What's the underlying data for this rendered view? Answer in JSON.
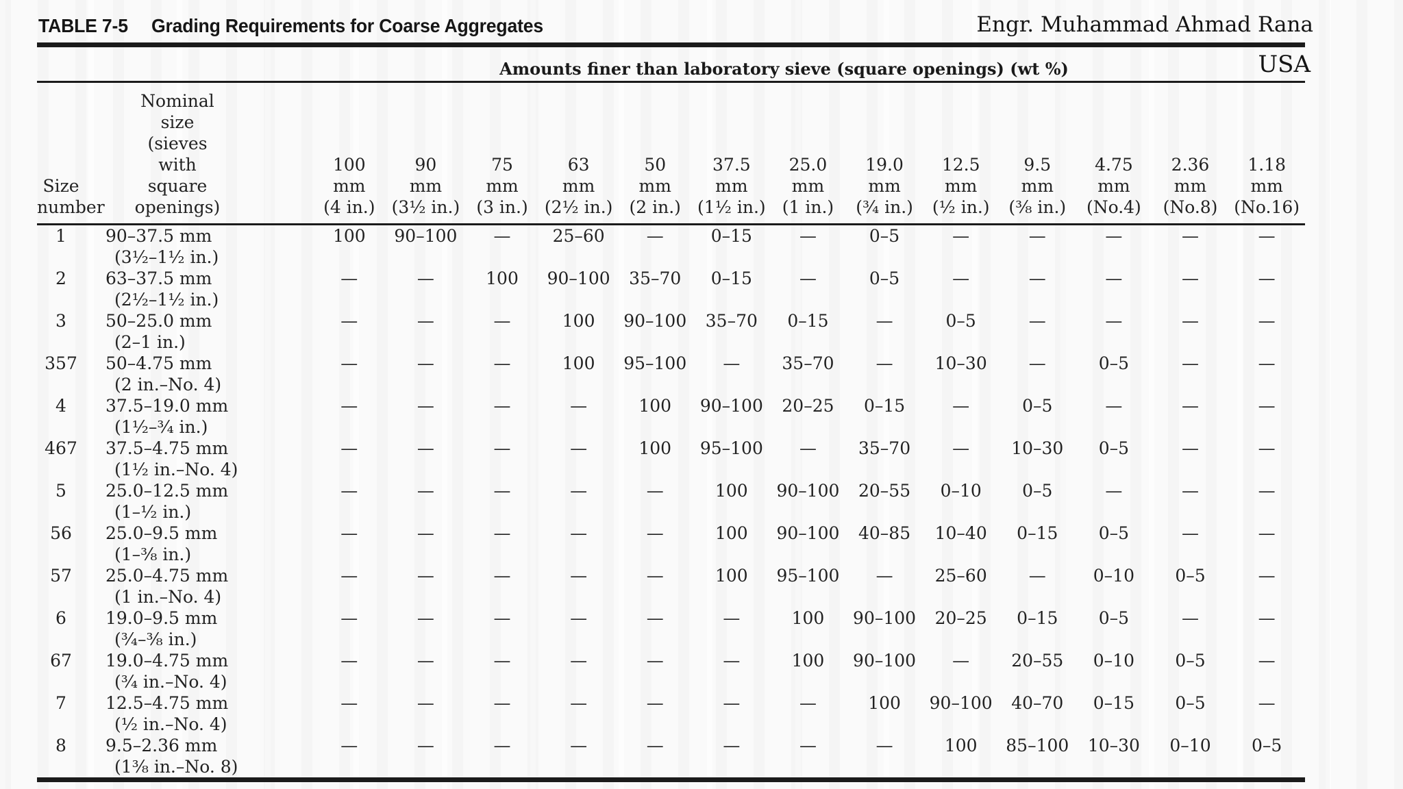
{
  "page": {
    "table_label": "TABLE 7-5",
    "table_title": "Grading Requirements for Coarse Aggregates",
    "credit_name": "Engr. Muhammad Ahmad Rana",
    "credit_country": "USA"
  },
  "table": {
    "span_header": "Amounts finer than laboratory sieve (square openings) (wt %)",
    "size_number_header_lines": [
      "Size",
      "number"
    ],
    "nominal_header_lines": [
      "Nominal",
      "size",
      "(sieves",
      "with",
      "square",
      "openings)"
    ],
    "empty_marker": "—",
    "sieve_columns": [
      {
        "size": "100",
        "unit": "mm",
        "imperial": "(4 in.)"
      },
      {
        "size": "90",
        "unit": "mm",
        "imperial": "(3¹⁄₂ in.)"
      },
      {
        "size": "75",
        "unit": "mm",
        "imperial": "(3 in.)"
      },
      {
        "size": "63",
        "unit": "mm",
        "imperial": "(2¹⁄₂ in.)"
      },
      {
        "size": "50",
        "unit": "mm",
        "imperial": "(2 in.)"
      },
      {
        "size": "37.5",
        "unit": "mm",
        "imperial": "(1¹⁄₂ in.)"
      },
      {
        "size": "25.0",
        "unit": "mm",
        "imperial": "(1 in.)"
      },
      {
        "size": "19.0",
        "unit": "mm",
        "imperial": "(³⁄₄ in.)"
      },
      {
        "size": "12.5",
        "unit": "mm",
        "imperial": "(¹⁄₂ in.)"
      },
      {
        "size": "9.5",
        "unit": "mm",
        "imperial": "(³⁄₈ in.)"
      },
      {
        "size": "4.75",
        "unit": "mm",
        "imperial": "(No.4)"
      },
      {
        "size": "2.36",
        "unit": "mm",
        "imperial": "(No.8)"
      },
      {
        "size": "1.18",
        "unit": "mm",
        "imperial": "(No.16)"
      }
    ],
    "rows": [
      {
        "size_number": "1",
        "nominal_mm": "90–37.5 mm",
        "nominal_in": "(3¹⁄₂–1¹⁄₂ in.)",
        "values": [
          "100",
          "90–100",
          "—",
          "25–60",
          "—",
          "0–15",
          "—",
          "0–5",
          "—",
          "—",
          "—",
          "—",
          "—"
        ]
      },
      {
        "size_number": "2",
        "nominal_mm": "63–37.5 mm",
        "nominal_in": "(2¹⁄₂–1¹⁄₂ in.)",
        "values": [
          "—",
          "—",
          "100",
          "90–100",
          "35–70",
          "0–15",
          "—",
          "0–5",
          "—",
          "—",
          "—",
          "—",
          "—"
        ]
      },
      {
        "size_number": "3",
        "nominal_mm": "50–25.0 mm",
        "nominal_in": "(2–1 in.)",
        "values": [
          "—",
          "—",
          "—",
          "100",
          "90–100",
          "35–70",
          "0–15",
          "—",
          "0–5",
          "—",
          "—",
          "—",
          "—"
        ]
      },
      {
        "size_number": "357",
        "nominal_mm": "50–4.75 mm",
        "nominal_in": "(2 in.–No. 4)",
        "values": [
          "—",
          "—",
          "—",
          "100",
          "95–100",
          "—",
          "35–70",
          "—",
          "10–30",
          "—",
          "0–5",
          "—",
          "—"
        ]
      },
      {
        "size_number": "4",
        "nominal_mm": "37.5–19.0 mm",
        "nominal_in": "(1¹⁄₂–³⁄₄ in.)",
        "values": [
          "—",
          "—",
          "—",
          "—",
          "100",
          "90–100",
          "20–25",
          "0–15",
          "—",
          "0–5",
          "—",
          "—",
          "—"
        ]
      },
      {
        "size_number": "467",
        "nominal_mm": "37.5–4.75 mm",
        "nominal_in": "(1¹⁄₂ in.–No. 4)",
        "values": [
          "—",
          "—",
          "—",
          "—",
          "100",
          "95–100",
          "—",
          "35–70",
          "—",
          "10–30",
          "0–5",
          "—",
          "—"
        ]
      },
      {
        "size_number": "5",
        "nominal_mm": "25.0–12.5 mm",
        "nominal_in": "(1–¹⁄₂ in.)",
        "values": [
          "—",
          "—",
          "—",
          "—",
          "—",
          "100",
          "90–100",
          "20–55",
          "0–10",
          "0–5",
          "—",
          "—",
          "—"
        ]
      },
      {
        "size_number": "56",
        "nominal_mm": "25.0–9.5 mm",
        "nominal_in": "(1–³⁄₈ in.)",
        "values": [
          "—",
          "—",
          "—",
          "—",
          "—",
          "100",
          "90–100",
          "40–85",
          "10–40",
          "0–15",
          "0–5",
          "—",
          "—"
        ]
      },
      {
        "size_number": "57",
        "nominal_mm": "25.0–4.75 mm",
        "nominal_in": "(1 in.–No. 4)",
        "values": [
          "—",
          "—",
          "—",
          "—",
          "—",
          "100",
          "95–100",
          "—",
          "25–60",
          "—",
          "0–10",
          "0–5",
          "—"
        ]
      },
      {
        "size_number": "6",
        "nominal_mm": "19.0–9.5 mm",
        "nominal_in": "(³⁄₄–³⁄₈ in.)",
        "values": [
          "—",
          "—",
          "—",
          "—",
          "—",
          "—",
          "100",
          "90–100",
          "20–25",
          "0–15",
          "0–5",
          "—",
          "—"
        ]
      },
      {
        "size_number": "67",
        "nominal_mm": "19.0–4.75 mm",
        "nominal_in": "(³⁄₄ in.–No. 4)",
        "values": [
          "—",
          "—",
          "—",
          "—",
          "—",
          "—",
          "100",
          "90–100",
          "—",
          "20–55",
          "0–10",
          "0–5",
          "—"
        ]
      },
      {
        "size_number": "7",
        "nominal_mm": "12.5–4.75 mm",
        "nominal_in": "(¹⁄₂ in.–No. 4)",
        "values": [
          "—",
          "—",
          "—",
          "—",
          "—",
          "—",
          "—",
          "100",
          "90–100",
          "40–70",
          "0–15",
          "0–5",
          "—"
        ]
      },
      {
        "size_number": "8",
        "nominal_mm": "9.5–2.36 mm",
        "nominal_in": "(1³⁄₈ in.–No. 8)",
        "values": [
          "—",
          "—",
          "—",
          "—",
          "—",
          "—",
          "—",
          "—",
          "100",
          "85–100",
          "10–30",
          "0–10",
          "0–5"
        ]
      }
    ]
  },
  "colors": {
    "ink": "#212121",
    "rule": "#1b1b1b",
    "paper": "#fafafa"
  }
}
